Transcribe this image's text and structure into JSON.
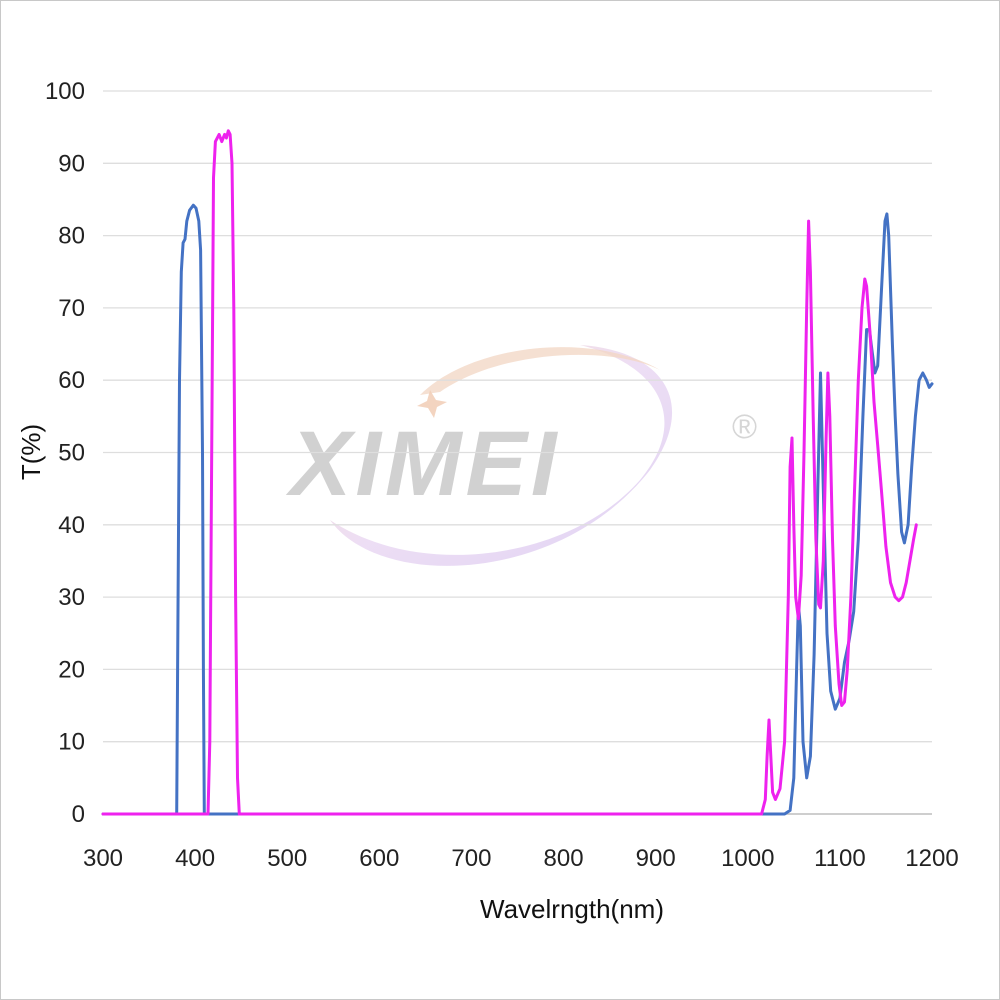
{
  "chart_data": {
    "type": "line",
    "title": "",
    "xlabel": "Wavelrngth(nm)",
    "ylabel": "T(%)",
    "xlim": [
      300,
      1200
    ],
    "ylim": [
      0,
      100
    ],
    "xticks": [
      300,
      400,
      500,
      600,
      700,
      800,
      900,
      1000,
      1100,
      1200
    ],
    "yticks": [
      0,
      10,
      20,
      30,
      40,
      50,
      60,
      70,
      80,
      90,
      100
    ],
    "grid": "horizontal",
    "legend": "none",
    "watermark": {
      "text": "XIMEI",
      "mark": "®"
    },
    "series": [
      {
        "color": "#4472c4",
        "points": [
          [
            300,
            0
          ],
          [
            380,
            0
          ],
          [
            381,
            20
          ],
          [
            383,
            60
          ],
          [
            385,
            75
          ],
          [
            387,
            79
          ],
          [
            389,
            79.5
          ],
          [
            391,
            82
          ],
          [
            394,
            83.5
          ],
          [
            398,
            84.2
          ],
          [
            401,
            83.8
          ],
          [
            404,
            82
          ],
          [
            406,
            78
          ],
          [
            408,
            50
          ],
          [
            409,
            20
          ],
          [
            410,
            0
          ],
          [
            1040,
            0
          ],
          [
            1046,
            0.5
          ],
          [
            1050,
            5
          ],
          [
            1053,
            20
          ],
          [
            1055,
            29
          ],
          [
            1057,
            26
          ],
          [
            1060,
            10
          ],
          [
            1064,
            5
          ],
          [
            1068,
            8
          ],
          [
            1072,
            22
          ],
          [
            1076,
            45
          ],
          [
            1079,
            61
          ],
          [
            1082,
            45
          ],
          [
            1086,
            25
          ],
          [
            1090,
            17
          ],
          [
            1095,
            14.5
          ],
          [
            1100,
            16
          ],
          [
            1105,
            21
          ],
          [
            1110,
            24
          ],
          [
            1115,
            28
          ],
          [
            1120,
            38
          ],
          [
            1125,
            55
          ],
          [
            1129,
            67
          ],
          [
            1132,
            67
          ],
          [
            1135,
            64
          ],
          [
            1138,
            61
          ],
          [
            1141,
            62
          ],
          [
            1145,
            72
          ],
          [
            1149,
            82
          ],
          [
            1151,
            83
          ],
          [
            1153,
            80
          ],
          [
            1157,
            65
          ],
          [
            1160,
            55
          ],
          [
            1163,
            47
          ],
          [
            1167,
            39
          ],
          [
            1170,
            37.5
          ],
          [
            1174,
            40
          ],
          [
            1178,
            48
          ],
          [
            1182,
            55
          ],
          [
            1186,
            60
          ],
          [
            1190,
            61
          ],
          [
            1194,
            60
          ],
          [
            1197,
            59
          ],
          [
            1200,
            59.5
          ]
        ]
      },
      {
        "color": "#ee22ee",
        "points": [
          [
            300,
            0
          ],
          [
            414,
            0
          ],
          [
            416,
            10
          ],
          [
            418,
            50
          ],
          [
            420,
            88
          ],
          [
            422,
            93
          ],
          [
            426,
            94
          ],
          [
            429,
            93
          ],
          [
            432,
            94
          ],
          [
            434,
            93.5
          ],
          [
            436,
            94.5
          ],
          [
            438,
            94
          ],
          [
            440,
            90
          ],
          [
            442,
            70
          ],
          [
            444,
            30
          ],
          [
            446,
            5
          ],
          [
            448,
            0
          ],
          [
            1015,
            0
          ],
          [
            1019,
            2
          ],
          [
            1021,
            8
          ],
          [
            1023,
            13
          ],
          [
            1025,
            8
          ],
          [
            1027,
            3
          ],
          [
            1030,
            2
          ],
          [
            1035,
            3.5
          ],
          [
            1040,
            10
          ],
          [
            1044,
            30
          ],
          [
            1046,
            48
          ],
          [
            1048,
            52
          ],
          [
            1050,
            40
          ],
          [
            1052,
            30
          ],
          [
            1055,
            27
          ],
          [
            1058,
            33
          ],
          [
            1061,
            50
          ],
          [
            1064,
            70
          ],
          [
            1066,
            82
          ],
          [
            1068,
            75
          ],
          [
            1071,
            55
          ],
          [
            1074,
            38
          ],
          [
            1077,
            29
          ],
          [
            1079,
            28.5
          ],
          [
            1082,
            35
          ],
          [
            1085,
            52
          ],
          [
            1087,
            61
          ],
          [
            1089,
            55
          ],
          [
            1092,
            38
          ],
          [
            1095,
            26
          ],
          [
            1099,
            18
          ],
          [
            1102,
            15
          ],
          [
            1105,
            15.5
          ],
          [
            1108,
            20
          ],
          [
            1112,
            30
          ],
          [
            1116,
            45
          ],
          [
            1120,
            60
          ],
          [
            1124,
            70
          ],
          [
            1127,
            74
          ],
          [
            1129,
            73
          ],
          [
            1133,
            66
          ],
          [
            1137,
            57
          ],
          [
            1141,
            51
          ],
          [
            1145,
            45
          ],
          [
            1150,
            37
          ],
          [
            1155,
            32
          ],
          [
            1160,
            30
          ],
          [
            1164,
            29.5
          ],
          [
            1168,
            30
          ],
          [
            1172,
            32
          ],
          [
            1176,
            35
          ],
          [
            1180,
            38
          ],
          [
            1183,
            40
          ]
        ]
      }
    ]
  }
}
